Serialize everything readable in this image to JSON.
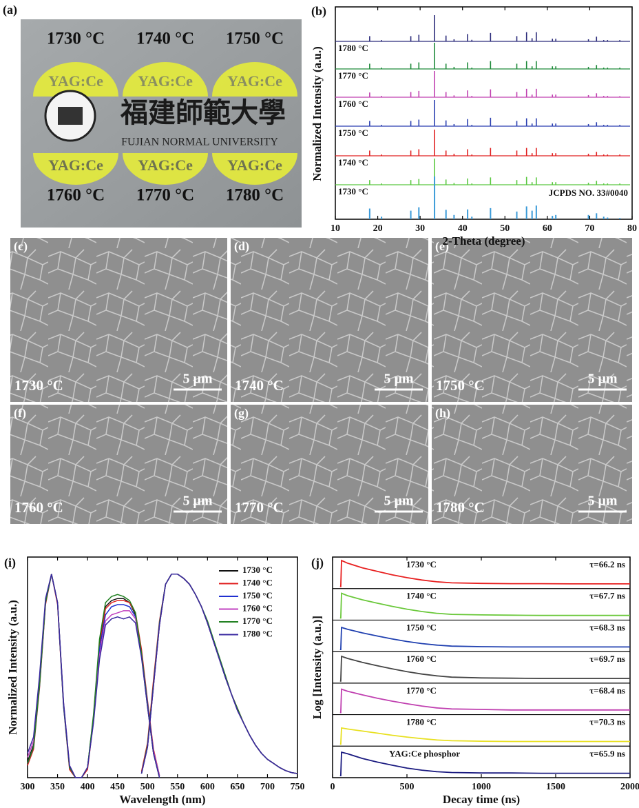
{
  "photo": {
    "panel": "(a)",
    "temperatures": [
      "1730 °C",
      "1740 °C",
      "1750 °C",
      "1760 °C",
      "1770 °C",
      "1780 °C"
    ],
    "sample_label": "YAG:Ce",
    "university_chinese": "福建師範大學",
    "university_english": "FUJIAN NORMAL UNIVERSITY"
  },
  "sem": {
    "panels": [
      {
        "panel": "(c)",
        "temperature": "1730 °C",
        "scale": "5 μm"
      },
      {
        "panel": "(d)",
        "temperature": "1740 °C",
        "scale": "5 μm"
      },
      {
        "panel": "(e)",
        "temperature": "1750 °C",
        "scale": "5 μm"
      },
      {
        "panel": "(f)",
        "temperature": "1760 °C",
        "scale": "5 μm"
      },
      {
        "panel": "(g)",
        "temperature": "1770 °C",
        "scale": "5 μm"
      },
      {
        "panel": "(h)",
        "temperature": "1780 °C",
        "scale": "5 μm"
      }
    ]
  },
  "chart_data": [
    {
      "type": "stem",
      "panel": "(b)",
      "x_label": "2-Theta (degree)",
      "y_label": "Normalized Intensity (a.u.)",
      "xlim": [
        10,
        80
      ],
      "xticks": [
        10,
        20,
        30,
        40,
        50,
        60,
        70,
        80
      ],
      "x": [
        18.1,
        20.9,
        27.8,
        29.7,
        33.4,
        36.1,
        38.0,
        41.2,
        42.2,
        46.6,
        52.8,
        55.1,
        56.4,
        57.4,
        61.2,
        62.0,
        69.7,
        71.6,
        73.3,
        74.2,
        77.1
      ],
      "series": [
        {
          "name": "1780 °C",
          "color": "#2b2b7a",
          "values": [
            0.2,
            0.05,
            0.2,
            0.25,
            1.0,
            0.22,
            0.08,
            0.28,
            0.06,
            0.32,
            0.2,
            0.35,
            0.12,
            0.35,
            0.1,
            0.1,
            0.08,
            0.18,
            0.05,
            0.05,
            0.05
          ]
        },
        {
          "name": "1770 °C",
          "color": "#1e8a3a",
          "values": [
            0.2,
            0.05,
            0.2,
            0.25,
            1.0,
            0.2,
            0.08,
            0.25,
            0.05,
            0.3,
            0.2,
            0.3,
            0.1,
            0.3,
            0.1,
            0.1,
            0.08,
            0.15,
            0.05,
            0.05,
            0.05
          ]
        },
        {
          "name": "1760 °C",
          "color": "#c040b0",
          "values": [
            0.18,
            0.05,
            0.2,
            0.24,
            1.0,
            0.2,
            0.07,
            0.26,
            0.05,
            0.3,
            0.2,
            0.32,
            0.1,
            0.32,
            0.1,
            0.1,
            0.08,
            0.15,
            0.05,
            0.05,
            0.04
          ]
        },
        {
          "name": "1750 °C",
          "color": "#2a3fb0",
          "values": [
            0.2,
            0.05,
            0.2,
            0.25,
            1.0,
            0.22,
            0.08,
            0.27,
            0.05,
            0.32,
            0.2,
            0.3,
            0.1,
            0.3,
            0.1,
            0.1,
            0.08,
            0.15,
            0.05,
            0.05,
            0.05
          ]
        },
        {
          "name": "1740 °C",
          "color": "#e02020",
          "values": [
            0.2,
            0.05,
            0.2,
            0.25,
            1.0,
            0.2,
            0.08,
            0.25,
            0.05,
            0.3,
            0.2,
            0.3,
            0.1,
            0.3,
            0.1,
            0.1,
            0.08,
            0.15,
            0.05,
            0.05,
            0.05
          ]
        },
        {
          "name": "1730 °C",
          "color": "#5ac840",
          "values": [
            0.18,
            0.05,
            0.18,
            0.22,
            1.0,
            0.2,
            0.07,
            0.24,
            0.05,
            0.28,
            0.18,
            0.3,
            0.1,
            0.28,
            0.1,
            0.1,
            0.08,
            0.15,
            0.05,
            0.05,
            0.05
          ]
        },
        {
          "name": "JCPDS NO. 33#0040",
          "color": "#3a9ad8",
          "values": [
            0.25,
            0.06,
            0.2,
            0.28,
            1.0,
            0.22,
            0.1,
            0.23,
            0.06,
            0.26,
            0.18,
            0.3,
            0.2,
            0.32,
            0.08,
            0.1,
            0.1,
            0.14,
            0.06,
            0.04,
            0.03
          ]
        }
      ]
    },
    {
      "type": "line",
      "panel": "(i)",
      "x_label": "Wavelength (nm)",
      "y_label": "Normalized Intensity (a.u.)",
      "xlim": [
        300,
        750
      ],
      "xticks": [
        300,
        350,
        400,
        450,
        500,
        550,
        600,
        650,
        700,
        750
      ],
      "ylim": [
        0,
        1.05
      ],
      "x_excitation": [
        300,
        310,
        320,
        330,
        340,
        350,
        360,
        370,
        380,
        390,
        400,
        410,
        420,
        430,
        440,
        450,
        460,
        470,
        480,
        490,
        500,
        510,
        520
      ],
      "x_emission": [
        490,
        500,
        510,
        520,
        530,
        540,
        550,
        560,
        570,
        580,
        590,
        600,
        610,
        620,
        630,
        640,
        650,
        660,
        670,
        680,
        690,
        700,
        710,
        720,
        730,
        740,
        750
      ],
      "series": [
        {
          "name": "1730 °C",
          "color": "#111111",
          "excitation": [
            0.08,
            0.16,
            0.46,
            0.86,
            1.0,
            0.86,
            0.36,
            0.05,
            0.0,
            0.0,
            0.05,
            0.3,
            0.66,
            0.84,
            0.87,
            0.88,
            0.88,
            0.86,
            0.8,
            0.6,
            0.35,
            0.12,
            0.0
          ],
          "emission": [
            0.02,
            0.15,
            0.45,
            0.75,
            0.95,
            1.0,
            1.0,
            0.98,
            0.95,
            0.9,
            0.84,
            0.76,
            0.67,
            0.58,
            0.49,
            0.41,
            0.33,
            0.27,
            0.21,
            0.16,
            0.12,
            0.09,
            0.07,
            0.05,
            0.035,
            0.025,
            0.02
          ]
        },
        {
          "name": "1740 °C",
          "color": "#e02020",
          "excitation": [
            0.06,
            0.14,
            0.44,
            0.85,
            1.0,
            0.85,
            0.35,
            0.04,
            0.0,
            0.0,
            0.04,
            0.28,
            0.64,
            0.83,
            0.86,
            0.87,
            0.87,
            0.86,
            0.81,
            0.63,
            0.38,
            0.14,
            0.01
          ],
          "emission": [
            0.03,
            0.17,
            0.48,
            0.77,
            0.95,
            1.0,
            1.0,
            0.98,
            0.95,
            0.9,
            0.84,
            0.76,
            0.67,
            0.58,
            0.49,
            0.41,
            0.34,
            0.27,
            0.21,
            0.16,
            0.12,
            0.09,
            0.07,
            0.05,
            0.035,
            0.025,
            0.02
          ]
        },
        {
          "name": "1750 °C",
          "color": "#2030d0",
          "excitation": [
            0.07,
            0.15,
            0.45,
            0.86,
            1.0,
            0.86,
            0.35,
            0.05,
            0.0,
            0.0,
            0.05,
            0.29,
            0.63,
            0.8,
            0.84,
            0.85,
            0.85,
            0.84,
            0.79,
            0.61,
            0.37,
            0.13,
            0.01
          ],
          "emission": [
            0.02,
            0.15,
            0.46,
            0.76,
            0.95,
            1.0,
            1.0,
            0.98,
            0.95,
            0.9,
            0.84,
            0.76,
            0.67,
            0.58,
            0.49,
            0.41,
            0.33,
            0.27,
            0.21,
            0.16,
            0.12,
            0.09,
            0.07,
            0.05,
            0.035,
            0.025,
            0.02
          ]
        },
        {
          "name": "1760 °C",
          "color": "#c040c0",
          "excitation": [
            0.1,
            0.18,
            0.48,
            0.87,
            1.0,
            0.86,
            0.37,
            0.06,
            0.0,
            0.0,
            0.05,
            0.28,
            0.6,
            0.77,
            0.8,
            0.81,
            0.82,
            0.82,
            0.78,
            0.6,
            0.36,
            0.13,
            0.01
          ],
          "emission": [
            0.02,
            0.15,
            0.45,
            0.75,
            0.95,
            1.0,
            1.0,
            0.98,
            0.95,
            0.9,
            0.84,
            0.76,
            0.67,
            0.58,
            0.5,
            0.41,
            0.33,
            0.27,
            0.21,
            0.16,
            0.12,
            0.09,
            0.07,
            0.05,
            0.035,
            0.025,
            0.02
          ]
        },
        {
          "name": "1770 °C",
          "color": "#208020",
          "excitation": [
            0.07,
            0.15,
            0.45,
            0.86,
            1.0,
            0.86,
            0.36,
            0.05,
            0.0,
            0.0,
            0.05,
            0.31,
            0.68,
            0.86,
            0.89,
            0.9,
            0.89,
            0.87,
            0.81,
            0.61,
            0.36,
            0.12,
            0.0
          ],
          "emission": [
            0.02,
            0.16,
            0.46,
            0.76,
            0.95,
            1.0,
            1.0,
            0.98,
            0.95,
            0.9,
            0.84,
            0.77,
            0.68,
            0.59,
            0.5,
            0.41,
            0.34,
            0.27,
            0.21,
            0.16,
            0.12,
            0.09,
            0.07,
            0.05,
            0.035,
            0.025,
            0.02
          ]
        },
        {
          "name": "1780 °C",
          "color": "#3a2aa0",
          "excitation": [
            0.12,
            0.2,
            0.5,
            0.88,
            1.0,
            0.86,
            0.37,
            0.06,
            0.0,
            0.0,
            0.05,
            0.27,
            0.58,
            0.75,
            0.78,
            0.79,
            0.78,
            0.79,
            0.76,
            0.59,
            0.35,
            0.12,
            0.0
          ],
          "emission": [
            0.02,
            0.15,
            0.45,
            0.75,
            0.95,
            1.0,
            1.0,
            0.98,
            0.95,
            0.9,
            0.84,
            0.76,
            0.67,
            0.58,
            0.49,
            0.41,
            0.33,
            0.27,
            0.21,
            0.16,
            0.12,
            0.09,
            0.07,
            0.05,
            0.035,
            0.025,
            0.02
          ]
        }
      ]
    },
    {
      "type": "decay",
      "panel": "(j)",
      "x_label": "Decay time (ns)",
      "y_label": "Log [Intensity (a.u.)]",
      "xlim": [
        0,
        2000
      ],
      "xticks": [
        0,
        500,
        1000,
        1500,
        2000
      ],
      "x": [
        50,
        55,
        60,
        100,
        200,
        300,
        400,
        500,
        600,
        700,
        800,
        1000,
        1200,
        1400,
        1600,
        1800,
        2000
      ],
      "series": [
        {
          "name": "1730 °C",
          "annotation": "τ=66.2 ns",
          "color": "#e82020",
          "values": [
            0,
            0,
            1,
            0.9,
            0.72,
            0.58,
            0.45,
            0.34,
            0.25,
            0.18,
            0.14,
            0.12,
            0.11,
            0.11,
            0.1,
            0.1,
            0.1
          ]
        },
        {
          "name": "1740 °C",
          "annotation": "τ=67.7 ns",
          "color": "#6ac83a",
          "values": [
            0,
            0,
            0.95,
            0.86,
            0.7,
            0.57,
            0.45,
            0.34,
            0.25,
            0.18,
            0.14,
            0.12,
            0.11,
            0.1,
            0.1,
            0.1,
            0.1
          ]
        },
        {
          "name": "1750 °C",
          "annotation": "τ=68.3 ns",
          "color": "#2040b0",
          "values": [
            0,
            0,
            0.85,
            0.78,
            0.64,
            0.52,
            0.41,
            0.31,
            0.23,
            0.17,
            0.13,
            0.11,
            0.1,
            0.1,
            0.1,
            0.1,
            0.1
          ]
        },
        {
          "name": "1760 °C",
          "annotation": "τ=69.7 ns",
          "color": "#444444",
          "values": [
            0,
            0,
            0.95,
            0.87,
            0.72,
            0.59,
            0.47,
            0.36,
            0.27,
            0.2,
            0.15,
            0.12,
            0.11,
            0.1,
            0.1,
            0.1,
            0.1
          ]
        },
        {
          "name": "1770 °C",
          "annotation": "τ=68.4 ns",
          "color": "#c040b0",
          "values": [
            0,
            0,
            0.9,
            0.82,
            0.68,
            0.55,
            0.44,
            0.34,
            0.25,
            0.18,
            0.14,
            0.12,
            0.1,
            0.1,
            0.1,
            0.1,
            0.1
          ]
        },
        {
          "name": "1780 °C",
          "annotation": "τ=70.3 ns",
          "color": "#e8e020",
          "values": [
            0,
            0,
            0.62,
            0.58,
            0.5,
            0.42,
            0.34,
            0.27,
            0.21,
            0.16,
            0.13,
            0.11,
            0.1,
            0.1,
            0.1,
            0.1,
            0.1
          ]
        },
        {
          "name": "YAG:Ce phosphor",
          "annotation": "τ=65.9 ns",
          "color": "#1a1a80",
          "values": [
            0,
            0,
            0.9,
            0.84,
            0.66,
            0.52,
            0.4,
            0.29,
            0.21,
            0.15,
            0.12,
            0.1,
            0.1,
            0.09,
            0.09,
            0.09,
            0.09
          ]
        }
      ]
    }
  ]
}
